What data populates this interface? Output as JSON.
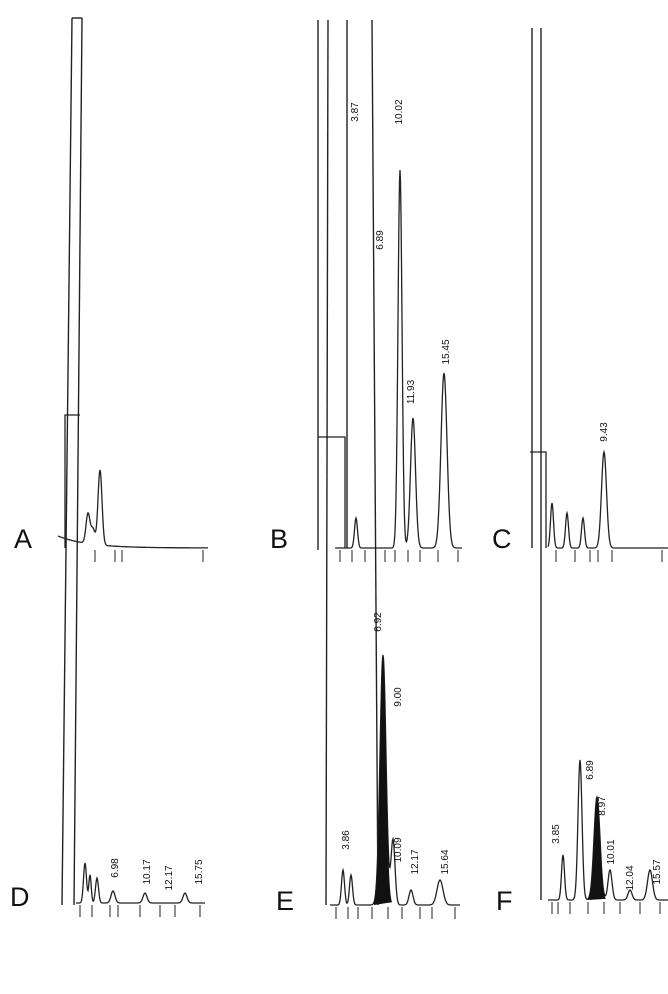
{
  "panels": [
    {
      "letter": "A",
      "peaks": []
    },
    {
      "letter": "B",
      "peaks": [
        "3.87",
        "10.02",
        "6.89",
        "11.93",
        "15.45"
      ]
    },
    {
      "letter": "C",
      "peaks": [
        "9.43"
      ]
    },
    {
      "letter": "D",
      "peaks": [
        "6.98",
        "10.17",
        "12.17",
        "15.75"
      ]
    },
    {
      "letter": "E",
      "peaks": [
        "6.92",
        "9.00",
        "3.86",
        "10.09",
        "12.17",
        "15.64"
      ]
    },
    {
      "letter": "F",
      "peaks": [
        "6.89",
        "8.97",
        "3.85",
        "10.01",
        "12.04",
        "15.57"
      ]
    }
  ]
}
